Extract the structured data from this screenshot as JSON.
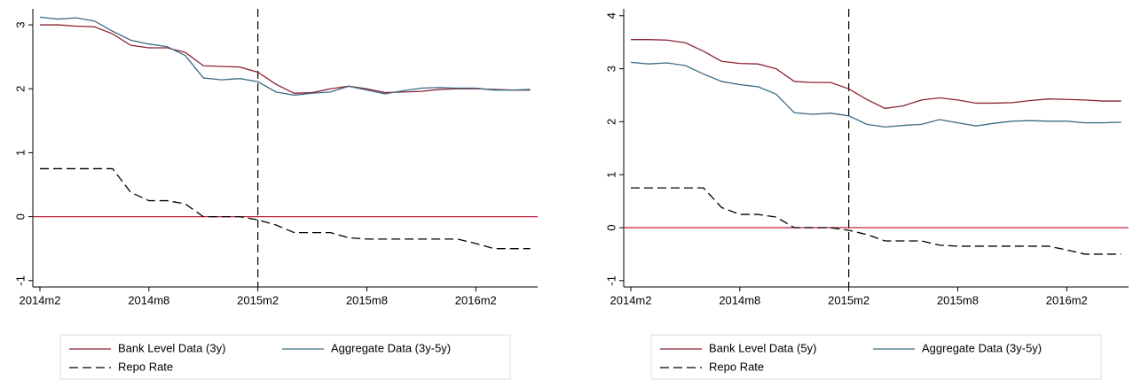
{
  "chart_data": [
    {
      "type": "line",
      "categories": [
        "2014m2",
        null,
        null,
        null,
        null,
        null,
        "2014m8",
        null,
        null,
        null,
        null,
        null,
        "2015m2",
        null,
        null,
        null,
        null,
        null,
        "2015m8",
        null,
        null,
        null,
        null,
        null,
        "2016m2",
        null,
        null,
        null
      ],
      "series": [
        {
          "name": "Bank Level Data (3y)",
          "color": "#8b2332",
          "line_style": "solid",
          "values": [
            3.0,
            3.0,
            2.98,
            2.97,
            2.86,
            2.68,
            2.64,
            2.64,
            2.57,
            2.36,
            2.35,
            2.34,
            2.26,
            2.07,
            1.93,
            1.94,
            2.0,
            2.04,
            2.0,
            1.94,
            1.95,
            1.96,
            1.99,
            2.0,
            2.0,
            1.99,
            1.98,
            1.98
          ]
        },
        {
          "name": "Aggregate Data (3y-5y)",
          "color": "#3d6a86",
          "line_style": "solid",
          "values": [
            3.12,
            3.09,
            3.11,
            3.06,
            2.9,
            2.76,
            2.7,
            2.66,
            2.52,
            2.17,
            2.14,
            2.16,
            2.11,
            1.95,
            1.9,
            1.93,
            1.95,
            2.04,
            1.98,
            1.92,
            1.97,
            2.01,
            2.02,
            2.01,
            2.01,
            1.98,
            1.98,
            1.99
          ]
        },
        {
          "name": "Repo Rate",
          "color": "#000000",
          "line_style": "dashed",
          "values": [
            0.75,
            0.75,
            0.75,
            0.75,
            0.75,
            0.38,
            0.25,
            0.25,
            0.2,
            0.0,
            0.0,
            0.0,
            -0.05,
            -0.13,
            -0.25,
            -0.25,
            -0.25,
            -0.33,
            -0.35,
            -0.35,
            -0.35,
            -0.35,
            -0.35,
            -0.35,
            -0.42,
            -0.5,
            -0.5,
            -0.5
          ]
        }
      ],
      "ylim": [
        -1.1,
        3.25
      ],
      "yticks": [
        -1,
        0,
        1,
        2,
        3
      ],
      "hline": 0,
      "hline_color": "#c0203f",
      "vline": "2015m2"
    },
    {
      "type": "line",
      "categories": [
        "2014m2",
        null,
        null,
        null,
        null,
        null,
        "2014m8",
        null,
        null,
        null,
        null,
        null,
        "2015m2",
        null,
        null,
        null,
        null,
        null,
        "2015m8",
        null,
        null,
        null,
        null,
        null,
        "2016m2",
        null,
        null,
        null
      ],
      "series": [
        {
          "name": "Bank Level Data (5y)",
          "color": "#8b2332",
          "line_style": "solid",
          "values": [
            3.55,
            3.55,
            3.54,
            3.49,
            3.33,
            3.14,
            3.1,
            3.09,
            3.0,
            2.76,
            2.74,
            2.74,
            2.62,
            2.42,
            2.25,
            2.3,
            2.41,
            2.45,
            2.41,
            2.35,
            2.35,
            2.36,
            2.4,
            2.43,
            2.42,
            2.41,
            2.39,
            2.39
          ]
        },
        {
          "name": "Aggregate Data (3y-5y)",
          "color": "#3d6a86",
          "line_style": "solid",
          "values": [
            3.12,
            3.09,
            3.11,
            3.06,
            2.9,
            2.76,
            2.7,
            2.66,
            2.52,
            2.17,
            2.14,
            2.16,
            2.11,
            1.95,
            1.9,
            1.93,
            1.95,
            2.04,
            1.98,
            1.92,
            1.97,
            2.01,
            2.02,
            2.01,
            2.01,
            1.98,
            1.98,
            1.99
          ]
        },
        {
          "name": "Repo Rate",
          "color": "#000000",
          "line_style": "dashed",
          "values": [
            0.75,
            0.75,
            0.75,
            0.75,
            0.75,
            0.38,
            0.25,
            0.25,
            0.2,
            0.0,
            0.0,
            0.0,
            -0.05,
            -0.13,
            -0.25,
            -0.25,
            -0.25,
            -0.33,
            -0.35,
            -0.35,
            -0.35,
            -0.35,
            -0.35,
            -0.35,
            -0.42,
            -0.5,
            -0.5,
            -0.5
          ]
        }
      ],
      "ylim": [
        -1.12,
        4.13
      ],
      "yticks": [
        -1,
        0,
        1,
        2,
        3,
        4
      ],
      "hline": 0,
      "hline_color": "#c0203f",
      "vline": "2015m2"
    }
  ]
}
